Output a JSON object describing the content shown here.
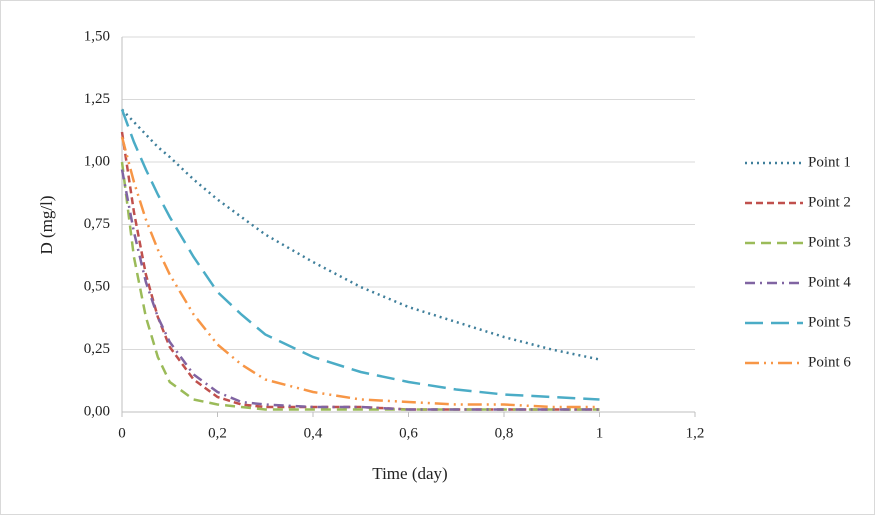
{
  "chart_data": {
    "type": "line",
    "x_label": "Time (day)",
    "y_label": "D (mg/l)",
    "x": [
      0,
      0.025,
      0.05,
      0.075,
      0.1,
      0.15,
      0.2,
      0.25,
      0.3,
      0.4,
      0.5,
      0.6,
      0.7,
      0.8,
      0.9,
      1
    ],
    "series": [
      {
        "name": "Point 1",
        "color": "#3f7f9b",
        "values": [
          1.21,
          1.16,
          1.11,
          1.06,
          1.02,
          0.93,
          0.85,
          0.78,
          0.71,
          0.6,
          0.5,
          0.42,
          0.36,
          0.3,
          0.25,
          0.21
        ]
      },
      {
        "name": "Point 2",
        "color": "#c0504d",
        "values": [
          1.12,
          0.8,
          0.55,
          0.38,
          0.26,
          0.13,
          0.06,
          0.03,
          0.02,
          0.02,
          0.02,
          0.01,
          0.01,
          0.01,
          0.01,
          0.01
        ]
      },
      {
        "name": "Point 3",
        "color": "#9bbb59",
        "values": [
          1.0,
          0.62,
          0.38,
          0.22,
          0.12,
          0.05,
          0.03,
          0.02,
          0.01,
          0.01,
          0.01,
          0.01,
          0.01,
          0.01,
          0.01,
          0.01
        ]
      },
      {
        "name": "Point 4",
        "color": "#8064a2",
        "values": [
          0.97,
          0.72,
          0.52,
          0.38,
          0.28,
          0.15,
          0.08,
          0.04,
          0.03,
          0.02,
          0.02,
          0.01,
          0.01,
          0.01,
          0.01,
          0.01
        ]
      },
      {
        "name": "Point 5",
        "color": "#4bacc6",
        "values": [
          1.21,
          1.08,
          0.97,
          0.87,
          0.78,
          0.62,
          0.48,
          0.39,
          0.31,
          0.22,
          0.16,
          0.12,
          0.09,
          0.07,
          0.06,
          0.05
        ]
      },
      {
        "name": "Point 6",
        "color": "#f79646",
        "values": [
          1.1,
          0.92,
          0.77,
          0.65,
          0.55,
          0.39,
          0.27,
          0.19,
          0.13,
          0.08,
          0.05,
          0.04,
          0.03,
          0.03,
          0.02,
          0.02
        ]
      }
    ],
    "xlim": [
      0,
      1.2
    ],
    "xticks": [
      0,
      {
        "value": 0.2,
        "label": "0,2"
      },
      {
        "value": 0.4,
        "label": "0,4"
      },
      {
        "value": 0.6,
        "label": "0,6"
      },
      {
        "value": 0.8,
        "label": "0,8"
      },
      {
        "value": 1,
        "label": "1"
      },
      {
        "value": 1.2,
        "label": "1,2"
      }
    ],
    "ylim": [
      0,
      1.5
    ],
    "yticks": [
      {
        "value": 0,
        "label": "0,00"
      },
      {
        "value": 0.25,
        "label": "0,25"
      },
      {
        "value": 0.5,
        "label": "0,50"
      },
      {
        "value": 0.75,
        "label": "0,75"
      },
      {
        "value": 1,
        "label": "1,00"
      },
      {
        "value": 1.25,
        "label": "1,25"
      },
      {
        "value": 1.5,
        "label": "1,50"
      }
    ],
    "grid": true,
    "legend": "right"
  }
}
